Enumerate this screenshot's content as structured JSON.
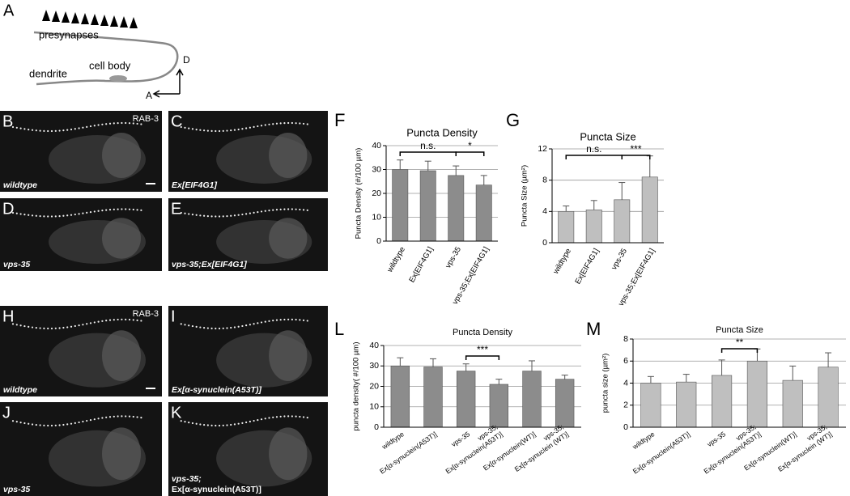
{
  "figure_a": {
    "letter": "A",
    "presynapses": "presynapses",
    "dendrite": "dendrite",
    "cell_body": "cell body",
    "dorsal": "D",
    "anterior": "A"
  },
  "micrographs": [
    {
      "letter": "B",
      "marker": "RAB-3",
      "genotype": [
        "wildtype"
      ]
    },
    {
      "letter": "C",
      "genotype": [
        "Ex[EIF4G1]"
      ]
    },
    {
      "letter": "D",
      "genotype": [
        "vps-35"
      ]
    },
    {
      "letter": "E",
      "genotype": [
        "vps-35;Ex[EIF4G1]"
      ]
    },
    {
      "letter": "H",
      "marker": "RAB-3",
      "genotype": [
        "wildtype"
      ]
    },
    {
      "letter": "I",
      "genotype": [
        "Ex[α-synuclein(A53T)]"
      ]
    },
    {
      "letter": "J",
      "genotype": [
        "vps-35"
      ]
    },
    {
      "letter": "K",
      "genotype": [
        "vps-35;",
        "Ex[α-synuclein(A53T)]"
      ]
    }
  ],
  "chart_data": [
    {
      "type": "bar",
      "letter": "F",
      "title": "Puncta Density",
      "y_label": "Puncta Density (#/100 µm)",
      "categories": [
        [
          "wildtype"
        ],
        [
          "Ex[EIF4G1]"
        ],
        [
          "vps-35"
        ],
        [
          "vps-35;Ex[EIF4G1]"
        ]
      ],
      "values": [
        30,
        29.5,
        27.5,
        23.5
      ],
      "errors": [
        4,
        4,
        4,
        4
      ],
      "color": "#8c8c8c",
      "ylim": [
        0,
        40
      ],
      "yticks": [
        0,
        10,
        20,
        30,
        40
      ],
      "grid": true,
      "annotations": [
        "n.s.",
        "*"
      ]
    },
    {
      "type": "bar",
      "letter": "G",
      "title": "Puncta Size",
      "y_label": "Puncta Size (µm²)",
      "categories": [
        [
          "wildtype"
        ],
        [
          "Ex[EIF4G1]"
        ],
        [
          "vps-35"
        ],
        [
          "vps-35;Ex[EIF4G1]"
        ]
      ],
      "values": [
        4.0,
        4.2,
        5.5,
        8.4
      ],
      "errors": [
        0.7,
        1.2,
        2.2,
        2.7
      ],
      "color": "#bfbfbf",
      "ylim": [
        0,
        12
      ],
      "yticks": [
        0,
        4,
        8,
        12
      ],
      "grid": true,
      "annotations": [
        "n.s.",
        "***"
      ]
    },
    {
      "type": "bar",
      "letter": "L",
      "title": "Puncta Density",
      "y_label": "puncta density( #/100 µm)",
      "categories": [
        [
          "wildtype"
        ],
        [
          "Ex[α-synuclein(A53T)]"
        ],
        [
          "vps-35"
        ],
        [
          "vps-35;",
          "Ex[α-synuclein(A53T)]"
        ],
        [
          "Ex[α-synuclein(WT)]"
        ],
        [
          "vps-35;",
          "Ex[α-synuclein (WT)]"
        ]
      ],
      "values": [
        30,
        29.5,
        27.5,
        21,
        27.5,
        23.5
      ],
      "errors": [
        4,
        4,
        3.5,
        2.5,
        5,
        2
      ],
      "color": "#8c8c8c",
      "ylim": [
        0,
        40
      ],
      "yticks": [
        0,
        10,
        20,
        30,
        40
      ],
      "grid": true,
      "annotations": [
        "***"
      ]
    },
    {
      "type": "bar",
      "letter": "M",
      "title": "Puncta Size",
      "y_label": "puncta size (µm²)",
      "categories": [
        [
          "wildtype"
        ],
        [
          "Ex[α-synuclein(A53T)]"
        ],
        [
          "vps-35"
        ],
        [
          "vps-35;",
          "Ex[α-synuclein(A53T)]"
        ],
        [
          "Ex[α-synuclein(WT)]"
        ],
        [
          "vps-35;",
          "Ex[α-synuclein (WT)]"
        ]
      ],
      "values": [
        4.0,
        4.1,
        4.7,
        6.0,
        4.25,
        5.45
      ],
      "errors": [
        0.6,
        0.7,
        1.4,
        1.1,
        1.3,
        1.3
      ],
      "color": "#bfbfbf",
      "ylim": [
        0,
        8
      ],
      "yticks": [
        0,
        2,
        4,
        6,
        8
      ],
      "grid": true,
      "annotations": [
        "**"
      ]
    }
  ]
}
